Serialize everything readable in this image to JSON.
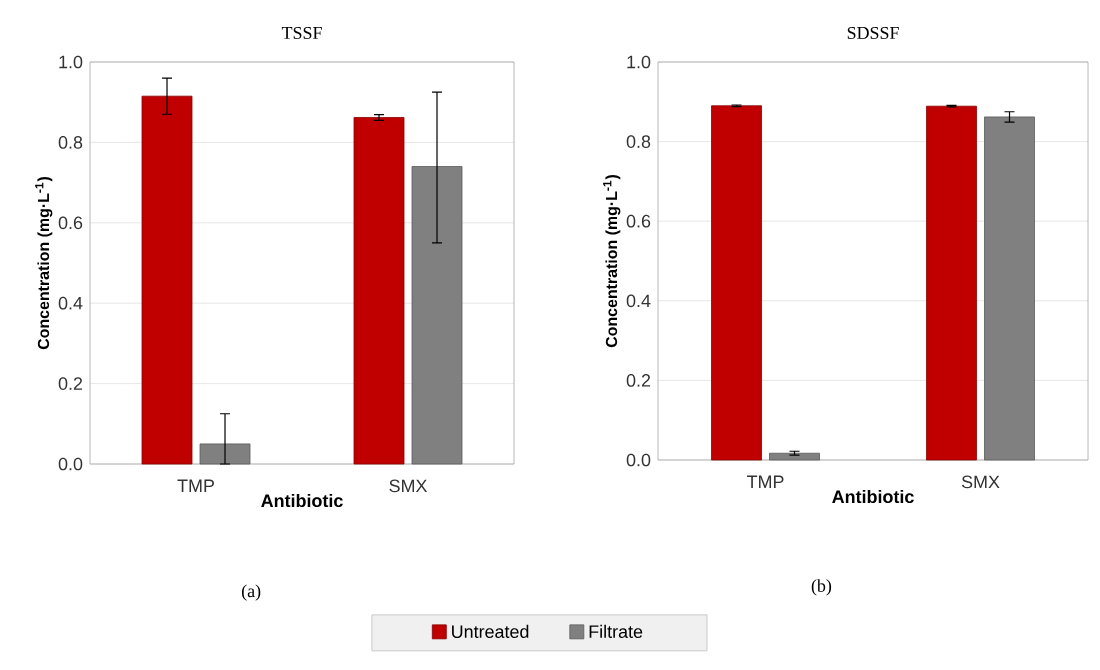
{
  "chart_data": [
    {
      "type": "bar",
      "title": "TSSF",
      "xlabel": "Antibiotic",
      "ylabel": "Concentration (mg·L$^{-1}$)",
      "categories": [
        "TMP",
        "SMX"
      ],
      "series": [
        {
          "name": "Untreated",
          "color": "#c00000",
          "values": [
            0.915,
            0.862
          ],
          "errors": [
            0.045,
            0.007
          ]
        },
        {
          "name": "Filtrate",
          "color": "#808080",
          "values": [
            0.05,
            0.74
          ],
          "errors": [
            [
              0.0,
              0.125
            ],
            [
              0.55,
              0.925
            ]
          ]
        }
      ],
      "ylim": [
        0,
        1
      ],
      "yticks": [
        {
          "value": 0,
          "label": "0.0"
        },
        {
          "value": 0.2,
          "label": "0.2"
        },
        {
          "value": 0.4,
          "label": "0.4"
        },
        {
          "value": 0.6,
          "label": "0.6"
        },
        {
          "value": 0.8,
          "label": "0.8"
        },
        {
          "value": 1,
          "label": "1.0"
        }
      ],
      "grid": "y",
      "legend": "bottom",
      "annotations": [
        "(a)"
      ]
    },
    {
      "type": "bar",
      "title": "SDSSF",
      "xlabel": "Antibiotic",
      "ylabel": "Concentration (mg·L$^{-1}$)",
      "categories": [
        "TMP",
        "SMX"
      ],
      "series": [
        {
          "color": "#c00000",
          "values": [
            0.89,
            0.889
          ],
          "errors": [
            0.002,
            0.002
          ]
        },
        {
          "color": "#808080",
          "values": [
            0.017,
            0.862
          ],
          "errors": [
            0.005,
            0.013
          ]
        }
      ],
      "ylim": [
        0,
        1
      ],
      "yticks": [
        {
          "value": 0,
          "label": "0.0"
        },
        {
          "value": 0.2,
          "label": "0.2"
        },
        {
          "value": 0.4,
          "label": "0.4"
        },
        {
          "value": 0.6,
          "label": "0.6"
        },
        {
          "value": 0.8,
          "label": "0.8"
        },
        {
          "value": 1,
          "label": "1.0"
        }
      ],
      "grid": "y",
      "annotations": [
        "(b)"
      ]
    }
  ]
}
